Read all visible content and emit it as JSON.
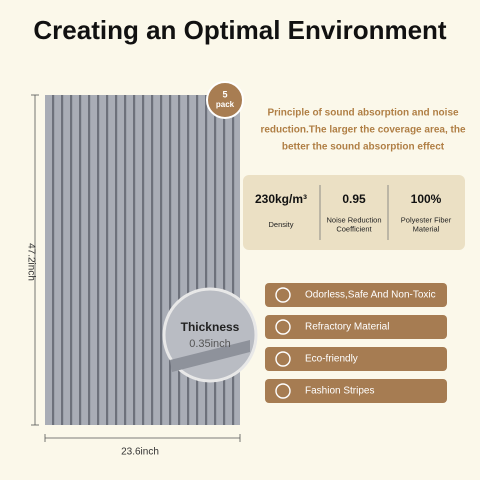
{
  "header": {
    "title": "Creating an Optimal Environment"
  },
  "badge": {
    "count": "5",
    "unit": "pack"
  },
  "description": [
    "Principle of sound absorption and noise",
    "reduction.The larger the coverage area, the",
    "better the sound absorption effect"
  ],
  "stats": [
    {
      "value": "230kg/m³",
      "label": [
        "Density"
      ]
    },
    {
      "value": "0.95",
      "label": [
        "Noise Reduction",
        "Coefficient"
      ]
    },
    {
      "value": "100%",
      "label": [
        "Polyester Fiber",
        "Material"
      ]
    }
  ],
  "features": [
    "Odorless,Safe And Non-Toxic",
    "Refractory Material",
    "Eco-friendly",
    "Fashion Stripes"
  ],
  "dimensions": {
    "height": "47.2inch",
    "width": "23.6inch",
    "thickness_label": "Thickness",
    "thickness": "0.35inch"
  }
}
